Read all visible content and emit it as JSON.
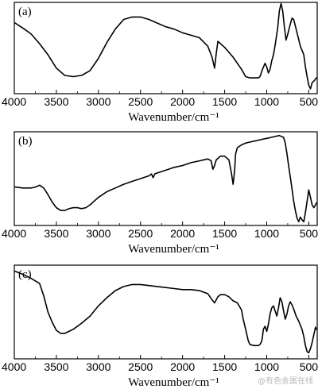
{
  "chart_data": [
    {
      "type": "line",
      "panel_label": "(a)",
      "xlabel": "Wavenumber/cm⁻¹",
      "xlim": [
        4000,
        400
      ],
      "xticks": [
        4000,
        3500,
        3000,
        2500,
        2000,
        1500,
        1000,
        500
      ],
      "ylabel": "",
      "grid": false,
      "series": [
        {
          "x": [
            3990,
            3880,
            3800,
            3700,
            3600,
            3500,
            3400,
            3300,
            3200,
            3100,
            3000,
            2900,
            2800,
            2700,
            2600,
            2500,
            2400,
            2300,
            2200,
            2100,
            2000,
            1900,
            1800,
            1700,
            1650,
            1620,
            1600,
            1580,
            1500,
            1400,
            1300,
            1250,
            1200,
            1150,
            1100,
            1080,
            1050,
            1020,
            1000,
            980,
            960,
            940,
            920,
            900,
            870,
            850,
            830,
            810,
            790,
            770,
            750,
            720,
            700,
            680,
            650,
            600,
            560,
            540,
            520,
            500,
            480,
            460,
            430,
            410
          ],
          "y": [
            0.96,
            0.91,
            0.87,
            0.79,
            0.7,
            0.59,
            0.53,
            0.52,
            0.53,
            0.57,
            0.67,
            0.8,
            0.91,
            0.99,
            1.01,
            1.01,
            0.99,
            0.96,
            0.93,
            0.91,
            0.88,
            0.86,
            0.84,
            0.77,
            0.68,
            0.59,
            0.71,
            0.81,
            0.76,
            0.68,
            0.58,
            0.52,
            0.51,
            0.51,
            0.51,
            0.52,
            0.58,
            0.63,
            0.6,
            0.55,
            0.58,
            0.65,
            0.7,
            0.78,
            0.92,
            1.06,
            1.12,
            1.06,
            0.93,
            0.82,
            0.87,
            0.95,
            1.0,
            0.99,
            0.91,
            0.77,
            0.7,
            0.6,
            0.52,
            0.45,
            0.42,
            0.47,
            0.49,
            0.51
          ]
        }
      ]
    },
    {
      "type": "line",
      "panel_label": "(b)",
      "xlabel": "Wavenumber/cm⁻¹",
      "xlim": [
        4000,
        400
      ],
      "xticks": [
        4000,
        3500,
        3000,
        2500,
        2000,
        1500,
        1000,
        500
      ],
      "ylabel": "",
      "grid": false,
      "series": [
        {
          "x": [
            3990,
            3900,
            3800,
            3750,
            3700,
            3650,
            3600,
            3550,
            3500,
            3450,
            3400,
            3350,
            3300,
            3250,
            3200,
            3150,
            3100,
            3050,
            3000,
            2950,
            2900,
            2800,
            2700,
            2600,
            2500,
            2400,
            2370,
            2350,
            2330,
            2300,
            2200,
            2100,
            2000,
            1900,
            1800,
            1700,
            1660,
            1640,
            1620,
            1600,
            1550,
            1500,
            1450,
            1420,
            1400,
            1390,
            1380,
            1370,
            1350,
            1300,
            1250,
            1200,
            1150,
            1100,
            1050,
            1000,
            950,
            900,
            850,
            800,
            780,
            760,
            740,
            720,
            700,
            680,
            660,
            640,
            620,
            600,
            580,
            560,
            540,
            520,
            500,
            480,
            460,
            440,
            420,
            410
          ],
          "y": [
            0.35,
            0.34,
            0.34,
            0.35,
            0.37,
            0.34,
            0.27,
            0.19,
            0.13,
            0.1,
            0.1,
            0.12,
            0.13,
            0.13,
            0.12,
            0.13,
            0.16,
            0.2,
            0.24,
            0.27,
            0.3,
            0.34,
            0.38,
            0.41,
            0.44,
            0.47,
            0.49,
            0.45,
            0.49,
            0.5,
            0.53,
            0.56,
            0.58,
            0.61,
            0.63,
            0.65,
            0.63,
            0.54,
            0.58,
            0.64,
            0.68,
            0.68,
            0.64,
            0.5,
            0.38,
            0.45,
            0.55,
            0.7,
            0.77,
            0.8,
            0.82,
            0.83,
            0.84,
            0.85,
            0.86,
            0.87,
            0.88,
            0.89,
            0.9,
            0.88,
            0.82,
            0.71,
            0.58,
            0.46,
            0.33,
            0.2,
            0.1,
            0.02,
            -0.02,
            0.03,
            0.0,
            -0.02,
            0.08,
            0.2,
            0.32,
            0.24,
            0.16,
            0.13,
            0.16,
            0.18
          ]
        }
      ]
    },
    {
      "type": "line",
      "panel_label": "(c)",
      "xlabel": "Wavenumber/cm⁻¹",
      "xlim": [
        4000,
        400
      ],
      "xticks": [
        4000,
        3500,
        3000,
        2500,
        2000,
        1500,
        1000,
        500
      ],
      "ylabel": "",
      "grid": false,
      "series": [
        {
          "x": [
            3990,
            3900,
            3800,
            3700,
            3650,
            3600,
            3550,
            3500,
            3450,
            3400,
            3350,
            3300,
            3200,
            3100,
            3000,
            2900,
            2800,
            2700,
            2600,
            2500,
            2400,
            2300,
            2200,
            2100,
            2000,
            1900,
            1800,
            1700,
            1650,
            1620,
            1600,
            1580,
            1550,
            1500,
            1450,
            1400,
            1350,
            1300,
            1280,
            1250,
            1220,
            1200,
            1150,
            1100,
            1080,
            1060,
            1050,
            1040,
            1020,
            1000,
            980,
            960,
            940,
            920,
            900,
            880,
            860,
            840,
            820,
            800,
            780,
            760,
            740,
            720,
            700,
            680,
            650,
            620,
            600,
            580,
            560,
            540,
            520,
            500,
            480,
            460,
            440,
            420,
            410
          ],
          "y": [
            1.02,
            0.99,
            0.95,
            0.9,
            0.78,
            0.62,
            0.52,
            0.44,
            0.41,
            0.41,
            0.43,
            0.45,
            0.51,
            0.58,
            0.68,
            0.76,
            0.83,
            0.87,
            0.89,
            0.89,
            0.88,
            0.87,
            0.86,
            0.85,
            0.84,
            0.84,
            0.83,
            0.8,
            0.74,
            0.71,
            0.74,
            0.77,
            0.79,
            0.79,
            0.77,
            0.73,
            0.71,
            0.64,
            0.55,
            0.45,
            0.34,
            0.3,
            0.29,
            0.29,
            0.3,
            0.33,
            0.38,
            0.45,
            0.48,
            0.43,
            0.5,
            0.6,
            0.66,
            0.68,
            0.63,
            0.58,
            0.66,
            0.76,
            0.72,
            0.63,
            0.55,
            0.6,
            0.68,
            0.72,
            0.69,
            0.65,
            0.58,
            0.53,
            0.49,
            0.45,
            0.38,
            0.29,
            0.23,
            0.22,
            0.26,
            0.32,
            0.4,
            0.47,
            0.45
          ]
        }
      ]
    }
  ],
  "watermark": "@有色金属在线"
}
